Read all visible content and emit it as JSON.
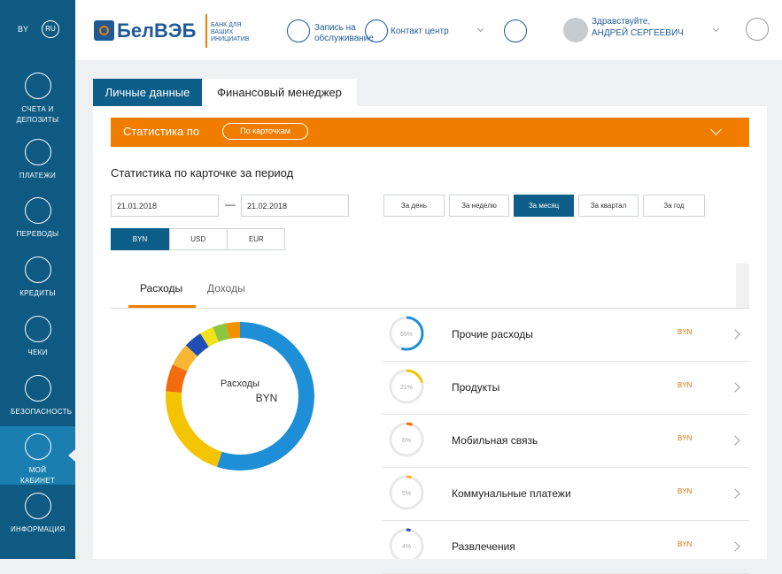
{
  "sidebar": {
    "languages": [
      "BY",
      "RU"
    ],
    "items": [
      "СЧЕТА И ДЕПОЗИТЫ",
      "ПЛАТЕЖИ",
      "ПЕРЕВОДЫ",
      "КРЕДИТЫ",
      "ЧЕКИ",
      "БЕЗОПАСНОСТЬ",
      "МОЙ КАБИНЕТ",
      "ИНФОРМАЦИЯ"
    ]
  },
  "header": {
    "logo": "БелВЭБ",
    "tagline": "БАНК ДЛЯ ВАШИХ ИНИЦИАТИВ",
    "appointment": "Запись на обслуживание",
    "contact": "Контакт центр",
    "greeting": "Здравствуйте,",
    "user": "АНДРЕЙ СЕРГЕЕВИЧ"
  },
  "tabs": [
    "Личные данные",
    "Финансовый менеджер"
  ],
  "stats_bar": {
    "label": "Статистика по",
    "button": "По карточкам"
  },
  "period_title": "Статистика по карточке за период",
  "date_from": "21.01.2018",
  "date_separator": "—",
  "date_to": "21.02.2018",
  "period_buttons": [
    "За день",
    "За неделю",
    "За месяц",
    "За квартал",
    "За год"
  ],
  "currencies": [
    "BYN",
    "USD",
    "EUR"
  ],
  "subtabs": [
    "Расходы",
    "Доходы"
  ],
  "chart_data": {
    "type": "donut",
    "center_label": "Расходы",
    "center_currency": "BYN",
    "categories": [
      "Прочие расходы",
      "Продукты",
      "Мобильная связь",
      "Коммунальные платежи",
      "Развлечения",
      null,
      null,
      null
    ],
    "values": [
      55,
      21,
      6,
      5,
      4,
      3,
      3,
      3
    ],
    "value_labels": [
      "55%",
      "21%",
      "6%",
      "5%",
      "4%",
      null,
      null,
      null
    ],
    "colors": [
      "#1e8fd6",
      "#f5c400",
      "#f26c0d",
      "#f7b733",
      "#1f4fb5",
      "#f3e21b",
      "#8dc63f",
      "#f39200"
    ],
    "row_currency": [
      "BYN",
      "BYN",
      "BYN",
      "BYN",
      "BYN"
    ]
  }
}
